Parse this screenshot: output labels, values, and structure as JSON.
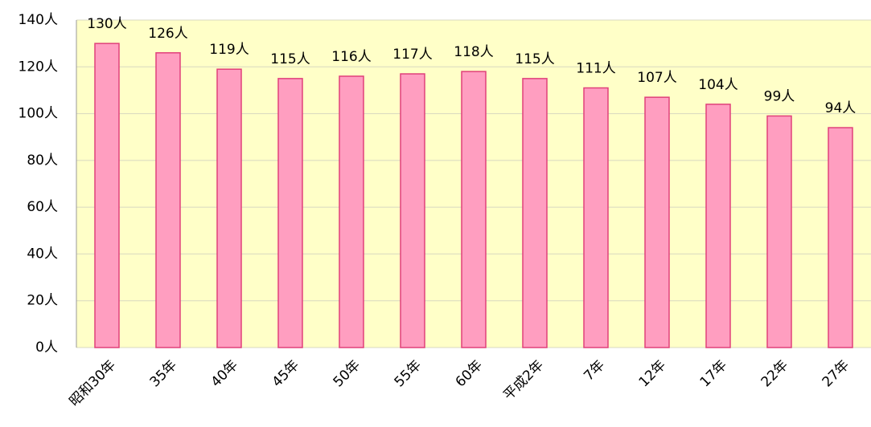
{
  "chart_data": {
    "type": "bar",
    "categories": [
      "昭和30年",
      "35年",
      "40年",
      "45年",
      "50年",
      "55年",
      "60年",
      "平成2年",
      "7年",
      "12年",
      "17年",
      "22年",
      "27年"
    ],
    "values": [
      130,
      126,
      119,
      115,
      116,
      117,
      118,
      115,
      111,
      107,
      104,
      99,
      94
    ],
    "value_labels": [
      "130人",
      "126人",
      "119人",
      "115人",
      "116人",
      "117人",
      "118人",
      "115人",
      "111人",
      "107人",
      "104人",
      "99人",
      "94人"
    ],
    "color": "#ff9ec0",
    "ylim": [
      0,
      140
    ],
    "yticks": [
      {
        "value": 0,
        "label": "0人"
      },
      {
        "value": 20,
        "label": "20人"
      },
      {
        "value": 40,
        "label": "40人"
      },
      {
        "value": 60,
        "label": "60人"
      },
      {
        "value": 80,
        "label": "80人"
      },
      {
        "value": 100,
        "label": "100人"
      },
      {
        "value": 120,
        "label": "120人"
      },
      {
        "value": 140,
        "label": "140人"
      }
    ],
    "grid": true
  }
}
